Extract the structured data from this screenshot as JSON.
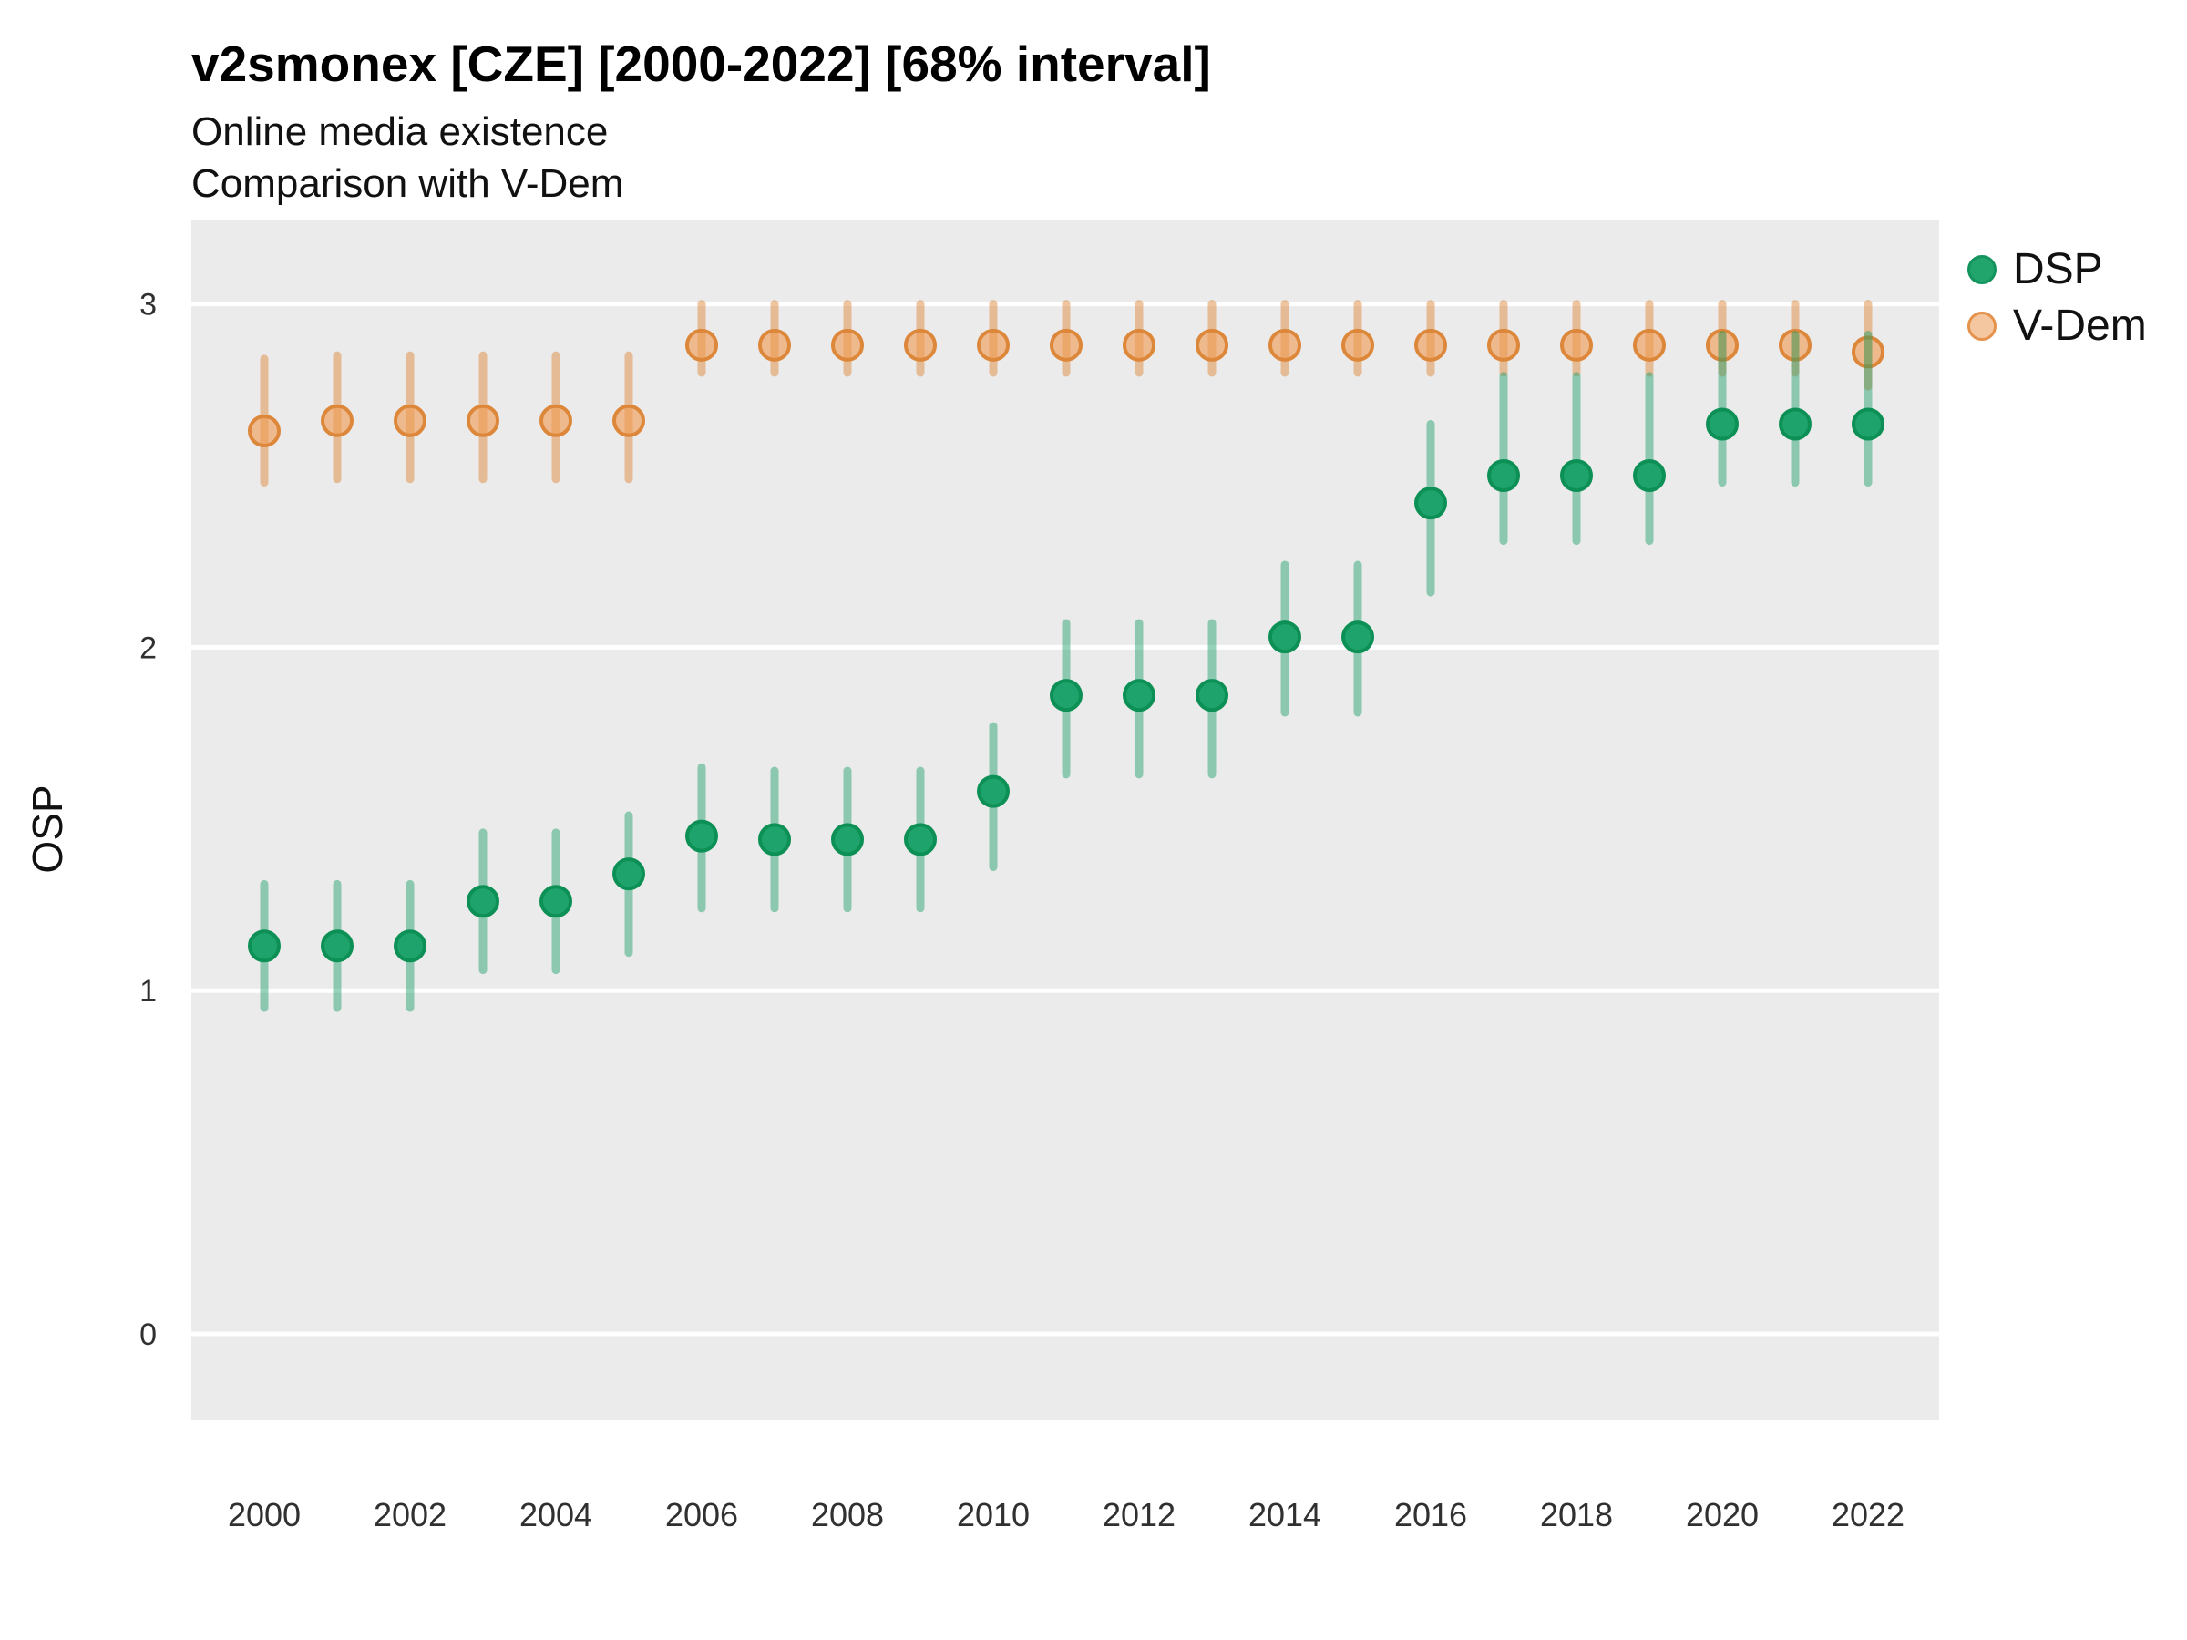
{
  "header": {
    "title": "v2smonex [CZE] [2000-2022] [68% interval]",
    "subtitle1": "Online media existence",
    "subtitle2": "Comparison with V-Dem"
  },
  "axes": {
    "y_label": "OSP",
    "y_ticks": [
      0,
      1,
      2,
      3
    ],
    "x_ticks": [
      2000,
      2002,
      2004,
      2006,
      2008,
      2010,
      2012,
      2014,
      2016,
      2018,
      2020,
      2022
    ]
  },
  "legend": {
    "items": [
      {
        "label": "DSP",
        "swatch_fill": "#22a46d",
        "swatch_border": "#13935d"
      },
      {
        "label": "V-Dem",
        "swatch_fill": "#f4c7a1",
        "swatch_border": "#e5924c"
      }
    ]
  },
  "colors": {
    "panel_background": "#EBEBEB",
    "gridline": "#FFFFFF",
    "dsp_green": "#1fa36c",
    "vdem_orange": "#e08a42",
    "tick_label": "#303030"
  },
  "chart_data": {
    "type": "scatter",
    "title": "v2smonex [CZE] [2000-2022] [68% interval]",
    "subtitle": "Online media existence / Comparison with V-Dem",
    "ylabel": "OSP",
    "xlabel": "",
    "interval": "68%",
    "ylim": [
      0,
      3
    ],
    "x_range": [
      2000,
      2022
    ],
    "grid": "major horizontal white lines on grey panel",
    "legend_position": "right",
    "x": [
      2000,
      2001,
      2002,
      2003,
      2004,
      2005,
      2006,
      2007,
      2008,
      2009,
      2010,
      2011,
      2012,
      2013,
      2014,
      2015,
      2016,
      2017,
      2018,
      2019,
      2020,
      2021,
      2022
    ],
    "series": [
      {
        "name": "DSP",
        "point_fill": "#1fa36c",
        "point_stroke": "#0d9055",
        "bar_color": "rgba(23,158,101,0.45)",
        "values": [
          1.13,
          1.13,
          1.13,
          1.26,
          1.26,
          1.34,
          1.45,
          1.44,
          1.44,
          1.44,
          1.58,
          1.86,
          1.86,
          1.86,
          2.03,
          2.03,
          2.42,
          2.5,
          2.5,
          2.5,
          2.65,
          2.65,
          2.65
        ],
        "lower": [
          0.95,
          0.95,
          0.95,
          1.06,
          1.06,
          1.11,
          1.24,
          1.24,
          1.24,
          1.24,
          1.36,
          1.63,
          1.63,
          1.63,
          1.81,
          1.81,
          2.16,
          2.31,
          2.31,
          2.31,
          2.48,
          2.48,
          2.48
        ],
        "upper": [
          1.31,
          1.31,
          1.31,
          1.46,
          1.46,
          1.51,
          1.65,
          1.64,
          1.64,
          1.64,
          1.77,
          2.07,
          2.07,
          2.07,
          2.24,
          2.24,
          2.65,
          2.79,
          2.79,
          2.79,
          2.91,
          2.91,
          2.91
        ]
      },
      {
        "name": "V-Dem",
        "point_fill": "rgba(240,153,78,0.6)",
        "point_stroke": "#dd873b",
        "bar_color": "rgba(224,139,66,0.5)",
        "values": [
          2.63,
          2.66,
          2.66,
          2.66,
          2.66,
          2.66,
          2.88,
          2.88,
          2.88,
          2.88,
          2.88,
          2.88,
          2.88,
          2.88,
          2.88,
          2.88,
          2.88,
          2.88,
          2.88,
          2.88,
          2.88,
          2.88,
          2.86
        ],
        "lower": [
          2.48,
          2.49,
          2.49,
          2.49,
          2.49,
          2.49,
          2.8,
          2.8,
          2.8,
          2.8,
          2.8,
          2.8,
          2.8,
          2.8,
          2.8,
          2.8,
          2.8,
          2.8,
          2.8,
          2.8,
          2.8,
          2.8,
          2.76
        ],
        "upper": [
          2.84,
          2.85,
          2.85,
          2.85,
          2.85,
          2.85,
          3.0,
          3.0,
          3.0,
          3.0,
          3.0,
          3.0,
          3.0,
          3.0,
          3.0,
          3.0,
          3.0,
          3.0,
          3.0,
          3.0,
          3.0,
          3.0,
          3.0
        ]
      }
    ]
  }
}
